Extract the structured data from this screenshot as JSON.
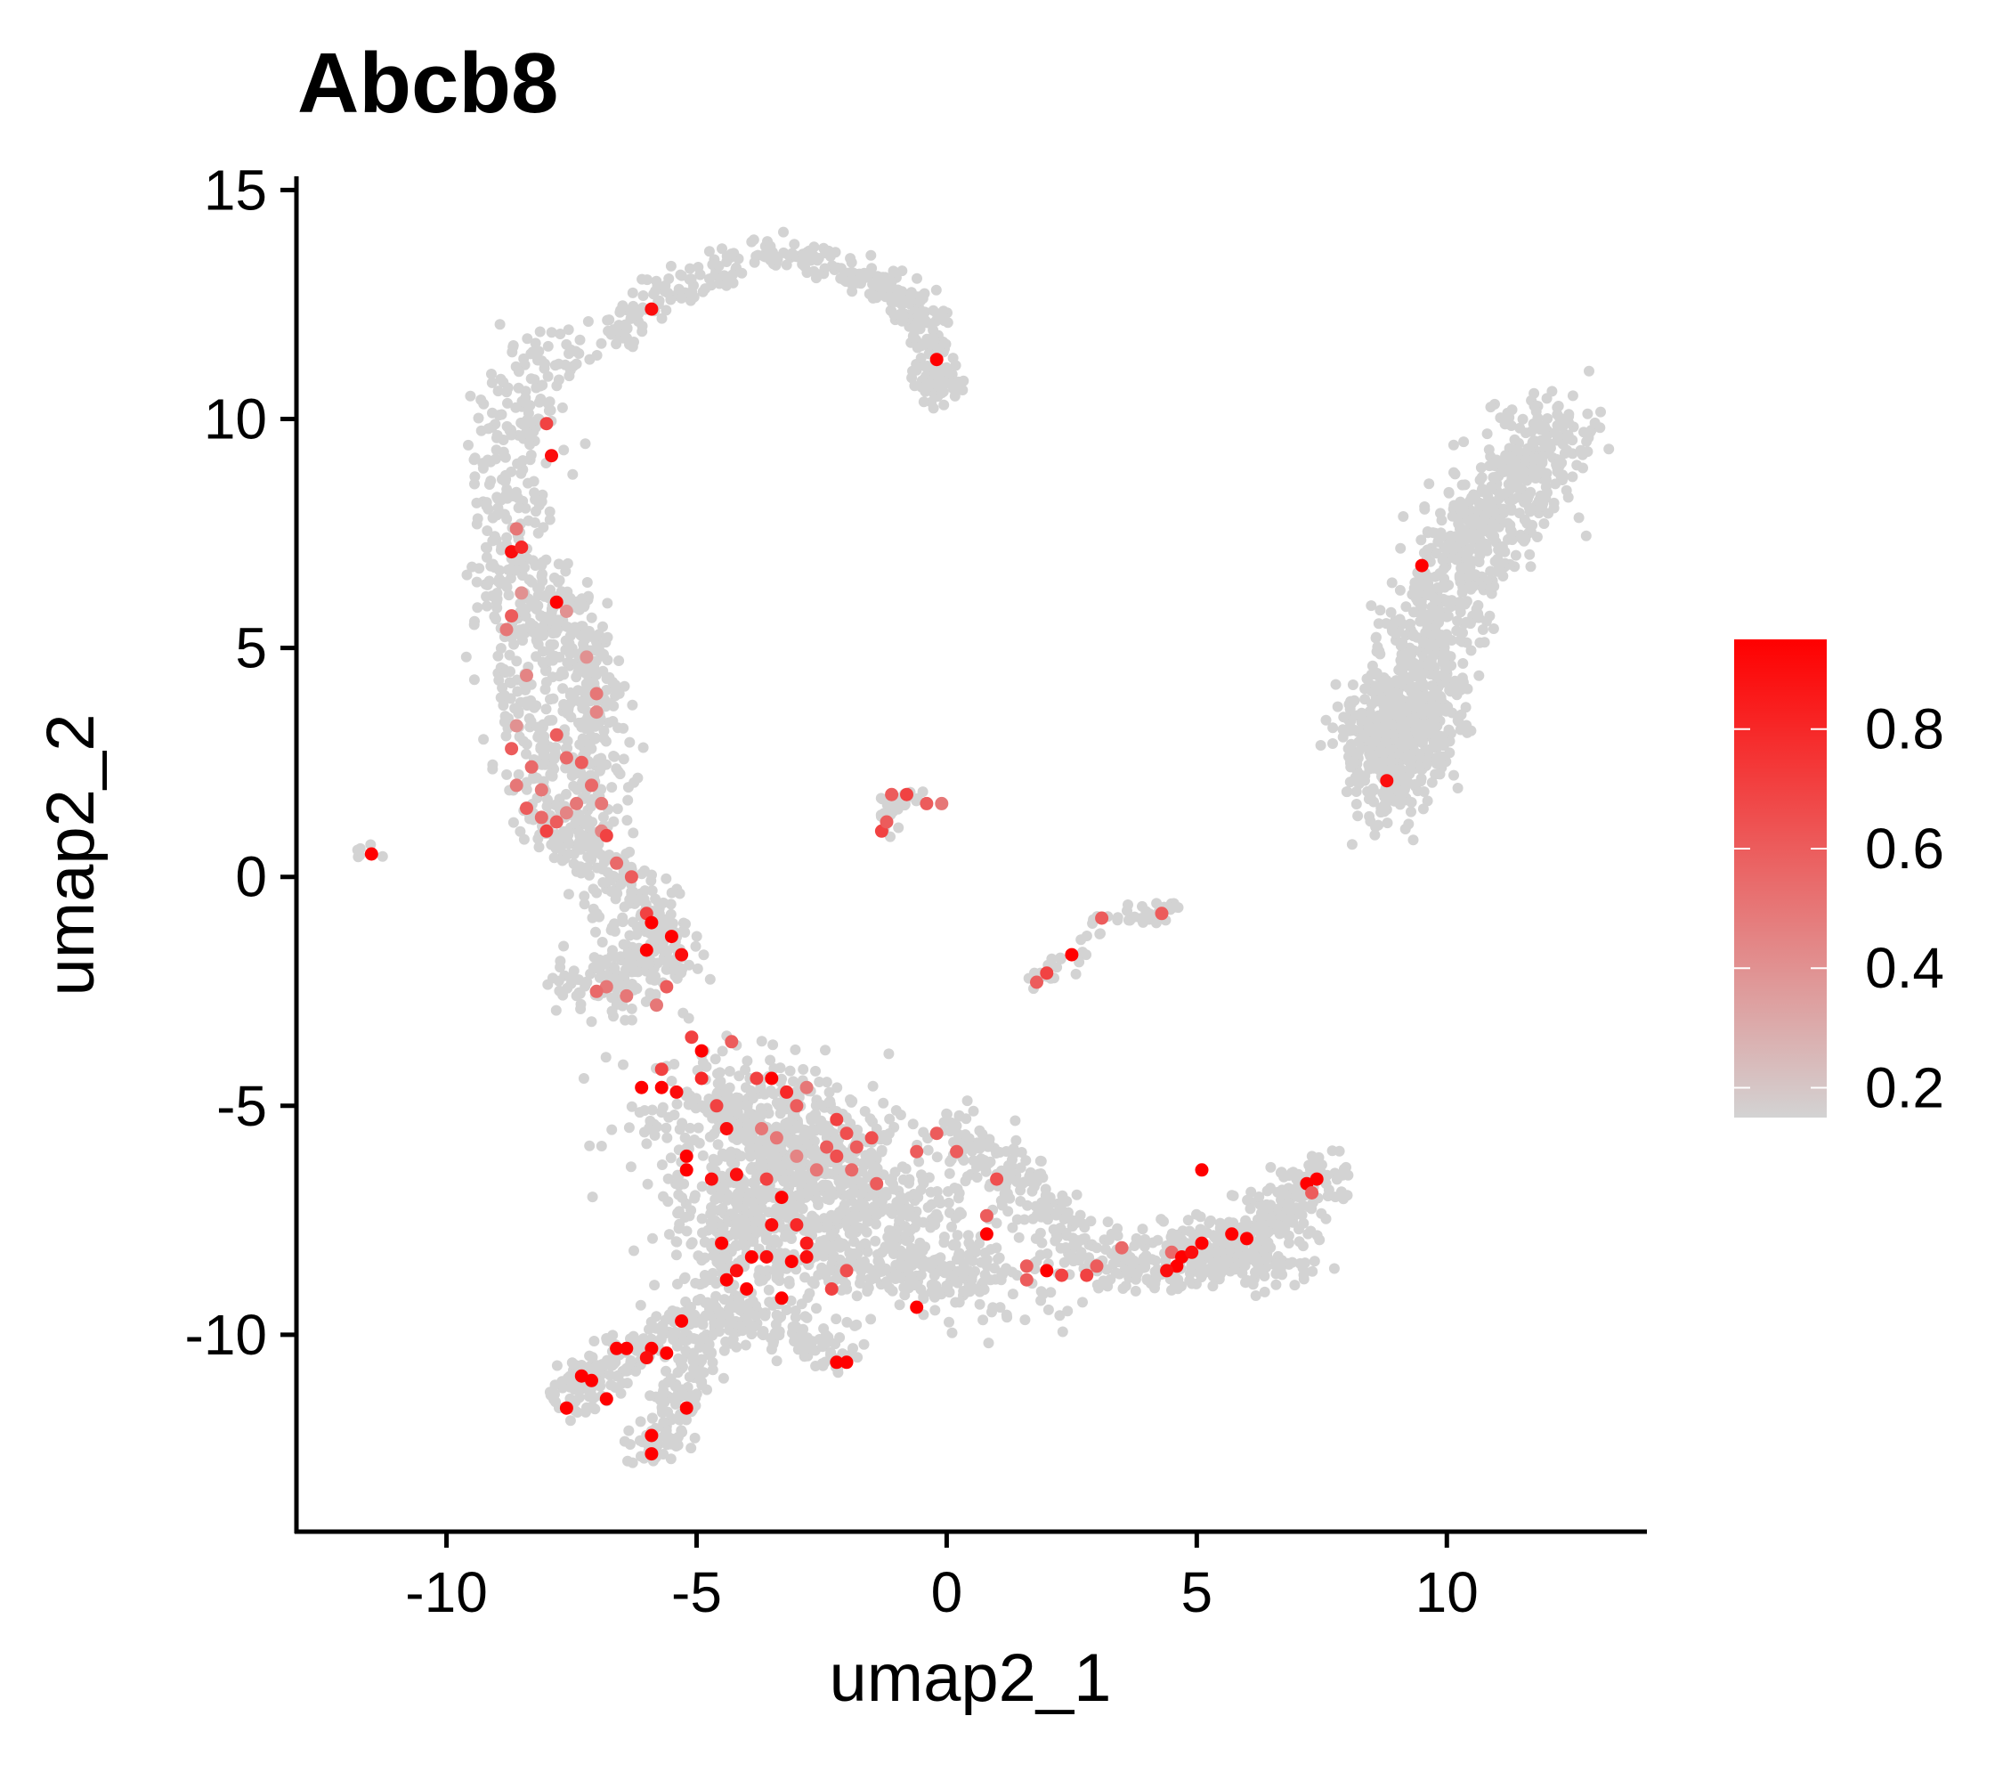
{
  "chart_data": {
    "type": "scatter",
    "title": "Abcb8",
    "xlabel": "umap2_1",
    "ylabel": "umap2_2",
    "xlim": [
      -13.0,
      14.0
    ],
    "ylim": [
      -14.3,
      15.3
    ],
    "xticks": [
      -10,
      -5,
      0,
      5,
      10
    ],
    "yticks": [
      15,
      10,
      5,
      0,
      -5,
      -10
    ],
    "xtick_labels": [
      "-10",
      "-5",
      "0",
      "5",
      "10"
    ],
    "ytick_labels": [
      "15",
      "10",
      "5",
      "0",
      "-5",
      "-10"
    ],
    "grid": false,
    "legend": {
      "type": "colorbar",
      "placement": "right",
      "range": [
        0.15,
        0.95
      ],
      "ticks": [
        0.2,
        0.4,
        0.6,
        0.8
      ],
      "tick_labels": [
        "0.2",
        "0.4",
        "0.6",
        "0.8"
      ],
      "low_color": "#d3d3d3",
      "high_color": "#ff0000"
    },
    "point_color_scale": {
      "low": "#d3d3d3",
      "high": "#ff0000"
    },
    "expressing_points": [
      [
        -11.5,
        0.5,
        0.95
      ],
      [
        -5.9,
        12.4,
        0.9
      ],
      [
        -0.2,
        11.3,
        0.95
      ],
      [
        -8.0,
        9.9,
        0.7
      ],
      [
        -7.9,
        9.2,
        0.9
      ],
      [
        -8.7,
        7.1,
        0.9
      ],
      [
        -8.5,
        7.2,
        0.8
      ],
      [
        -8.6,
        7.6,
        0.5
      ],
      [
        -7.8,
        6.0,
        0.95
      ],
      [
        -8.7,
        5.7,
        0.6
      ],
      [
        -8.8,
        5.4,
        0.5
      ],
      [
        -8.5,
        6.2,
        0.4
      ],
      [
        -7.6,
        5.8,
        0.4
      ],
      [
        -7.2,
        4.8,
        0.4
      ],
      [
        -7.0,
        4.0,
        0.5
      ],
      [
        -8.4,
        4.4,
        0.45
      ],
      [
        -8.7,
        2.8,
        0.6
      ],
      [
        -8.3,
        2.4,
        0.55
      ],
      [
        -8.6,
        2.0,
        0.5
      ],
      [
        -8.1,
        1.9,
        0.5
      ],
      [
        -7.6,
        2.6,
        0.55
      ],
      [
        -7.3,
        2.5,
        0.6
      ],
      [
        -7.1,
        2.0,
        0.55
      ],
      [
        -6.9,
        1.6,
        0.5
      ],
      [
        -7.4,
        1.6,
        0.5
      ],
      [
        -8.4,
        1.5,
        0.6
      ],
      [
        -8.1,
        1.3,
        0.55
      ],
      [
        -7.8,
        1.2,
        0.6
      ],
      [
        -7.6,
        1.4,
        0.45
      ],
      [
        -6.9,
        1.0,
        0.45
      ],
      [
        -6.8,
        0.9,
        0.7
      ],
      [
        -7.0,
        3.6,
        0.45
      ],
      [
        -8.6,
        3.3,
        0.4
      ],
      [
        -7.8,
        3.1,
        0.6
      ],
      [
        -8.0,
        1.0,
        0.7
      ],
      [
        -6.6,
        0.3,
        0.55
      ],
      [
        -6.3,
        0.0,
        0.6
      ],
      [
        -6.0,
        -0.8,
        0.7
      ],
      [
        -5.9,
        -1.0,
        0.95
      ],
      [
        -5.5,
        -1.3,
        0.95
      ],
      [
        -6.0,
        -1.6,
        0.95
      ],
      [
        -5.3,
        -1.7,
        0.9
      ],
      [
        -5.6,
        -2.4,
        0.6
      ],
      [
        -6.8,
        -2.4,
        0.5
      ],
      [
        -7.0,
        -2.5,
        0.55
      ],
      [
        -6.4,
        -2.6,
        0.5
      ],
      [
        -5.8,
        -2.8,
        0.5
      ],
      [
        -5.1,
        -3.5,
        0.7
      ],
      [
        -4.9,
        -3.8,
        0.95
      ],
      [
        -4.3,
        -3.6,
        0.6
      ],
      [
        -5.7,
        -4.2,
        0.7
      ],
      [
        -6.1,
        -4.6,
        0.95
      ],
      [
        -5.7,
        -4.6,
        0.95
      ],
      [
        -5.4,
        -4.7,
        0.9
      ],
      [
        -4.9,
        -4.4,
        0.8
      ],
      [
        -4.6,
        -5.0,
        0.7
      ],
      [
        -3.8,
        -4.4,
        0.7
      ],
      [
        -3.5,
        -4.4,
        0.95
      ],
      [
        -3.2,
        -4.7,
        0.8
      ],
      [
        -3.0,
        -5.0,
        0.6
      ],
      [
        -2.8,
        -4.6,
        0.5
      ],
      [
        -2.2,
        -5.3,
        0.7
      ],
      [
        -2.0,
        -5.6,
        0.65
      ],
      [
        -1.8,
        -5.9,
        0.6
      ],
      [
        -1.5,
        -5.7,
        0.65
      ],
      [
        -2.4,
        -5.9,
        0.6
      ],
      [
        -2.2,
        -6.1,
        0.65
      ],
      [
        -1.9,
        -6.4,
        0.55
      ],
      [
        -1.4,
        -6.7,
        0.6
      ],
      [
        -2.6,
        -6.4,
        0.5
      ],
      [
        -3.0,
        -6.1,
        0.45
      ],
      [
        -3.4,
        -5.7,
        0.5
      ],
      [
        -3.7,
        -5.5,
        0.5
      ],
      [
        -4.4,
        -5.5,
        0.9
      ],
      [
        -5.2,
        -6.1,
        0.95
      ],
      [
        -5.2,
        -6.4,
        0.95
      ],
      [
        -4.7,
        -6.6,
        0.9
      ],
      [
        -4.2,
        -6.5,
        0.9
      ],
      [
        -3.6,
        -6.6,
        0.7
      ],
      [
        -3.3,
        -7.0,
        0.95
      ],
      [
        -3.5,
        -7.6,
        0.9
      ],
      [
        -3.0,
        -7.6,
        0.8
      ],
      [
        -2.8,
        -8.0,
        0.85
      ],
      [
        -3.1,
        -8.4,
        0.95
      ],
      [
        -4.5,
        -8.0,
        0.95
      ],
      [
        -4.4,
        -8.8,
        0.95
      ],
      [
        -4.2,
        -8.6,
        0.9
      ],
      [
        -3.9,
        -8.3,
        0.95
      ],
      [
        -3.6,
        -8.3,
        0.9
      ],
      [
        -2.8,
        -8.3,
        0.9
      ],
      [
        -4.0,
        -9.0,
        0.95
      ],
      [
        -3.3,
        -9.2,
        0.95
      ],
      [
        -2.3,
        -9.0,
        0.7
      ],
      [
        -2.0,
        -8.6,
        0.65
      ],
      [
        -0.6,
        -9.4,
        0.95
      ],
      [
        -0.6,
        -6.0,
        0.6
      ],
      [
        -0.2,
        -5.6,
        0.6
      ],
      [
        0.2,
        -6.0,
        0.6
      ],
      [
        1.0,
        -6.6,
        0.65
      ],
      [
        0.8,
        -7.4,
        0.6
      ],
      [
        0.8,
        -7.8,
        0.95
      ],
      [
        1.6,
        -8.5,
        0.6
      ],
      [
        1.6,
        -8.8,
        0.6
      ],
      [
        2.0,
        -8.6,
        0.95
      ],
      [
        2.3,
        -8.7,
        0.7
      ],
      [
        2.8,
        -8.7,
        0.7
      ],
      [
        3.0,
        -8.5,
        0.6
      ],
      [
        3.5,
        -8.1,
        0.55
      ],
      [
        4.5,
        -8.2,
        0.55
      ],
      [
        4.6,
        -8.5,
        0.95
      ],
      [
        4.7,
        -8.3,
        0.95
      ],
      [
        4.9,
        -8.2,
        0.9
      ],
      [
        5.1,
        -8.0,
        0.95
      ],
      [
        5.7,
        -7.8,
        0.95
      ],
      [
        6.0,
        -7.9,
        0.95
      ],
      [
        5.1,
        -6.4,
        0.95
      ],
      [
        7.2,
        -6.7,
        0.95
      ],
      [
        7.4,
        -6.6,
        0.95
      ],
      [
        7.3,
        -6.9,
        0.6
      ],
      [
        4.4,
        -8.6,
        0.9
      ],
      [
        -5.3,
        -9.7,
        0.95
      ],
      [
        -6.4,
        -10.3,
        0.95
      ],
      [
        -6.6,
        -10.3,
        0.95
      ],
      [
        -5.9,
        -10.3,
        0.95
      ],
      [
        -6.0,
        -10.5,
        0.9
      ],
      [
        -5.6,
        -10.4,
        0.95
      ],
      [
        -7.3,
        -10.9,
        0.95
      ],
      [
        -7.1,
        -11.0,
        0.95
      ],
      [
        -6.8,
        -11.4,
        0.95
      ],
      [
        -7.6,
        -11.6,
        0.95
      ],
      [
        -5.2,
        -11.6,
        0.95
      ],
      [
        -5.9,
        -12.2,
        0.95
      ],
      [
        -5.9,
        -12.6,
        0.95
      ],
      [
        -2.2,
        -10.6,
        0.95
      ],
      [
        -2.0,
        -10.6,
        0.95
      ],
      [
        -1.3,
        1.0,
        0.7
      ],
      [
        -1.2,
        1.2,
        0.6
      ],
      [
        -0.8,
        1.8,
        0.7
      ],
      [
        -0.4,
        1.6,
        0.6
      ],
      [
        -0.1,
        1.6,
        0.5
      ],
      [
        -1.1,
        1.8,
        0.6
      ],
      [
        2.0,
        -2.1,
        0.7
      ],
      [
        2.5,
        -1.7,
        0.95
      ],
      [
        1.8,
        -2.3,
        0.6
      ],
      [
        3.1,
        -0.9,
        0.6
      ],
      [
        4.3,
        -0.8,
        0.6
      ],
      [
        9.5,
        6.8,
        0.95
      ],
      [
        8.8,
        2.1,
        0.9
      ]
    ]
  }
}
